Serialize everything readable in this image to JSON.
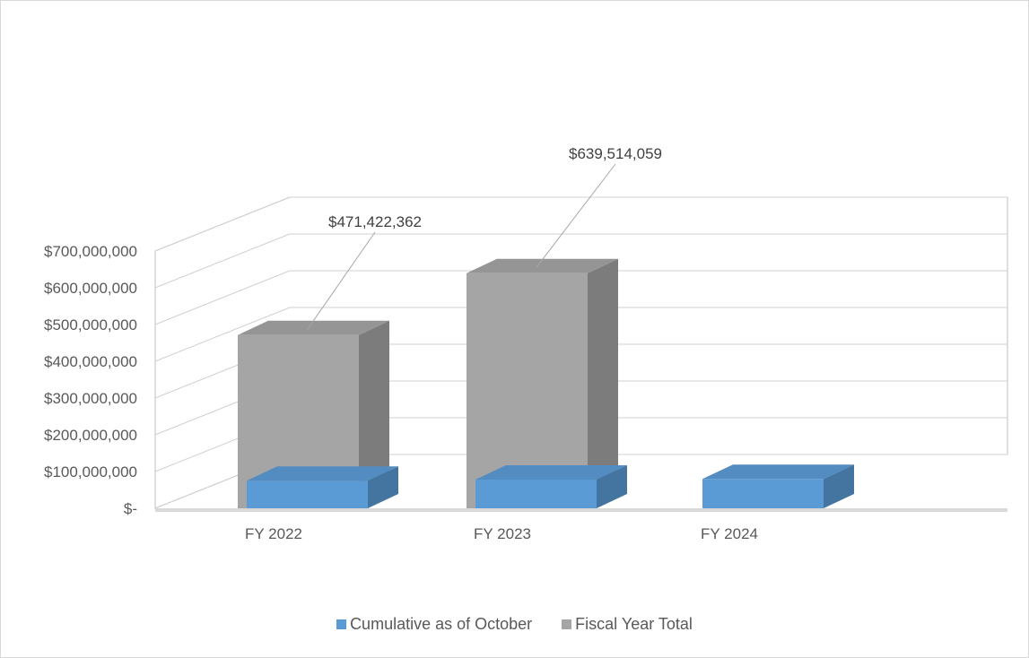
{
  "chart_data": {
    "type": "bar",
    "title": "",
    "xlabel": "",
    "ylabel": "",
    "categories": [
      "FY 2022",
      "FY 2023",
      "FY 2024"
    ],
    "ylim": [
      0,
      700000000
    ],
    "yticks": [
      0,
      100000000,
      200000000,
      300000000,
      400000000,
      500000000,
      600000000,
      700000000
    ],
    "ytick_labels": [
      "$-",
      "$100,000,000",
      "$200,000,000",
      "$300,000,000",
      "$400,000,000",
      "$500,000,000",
      "$600,000,000",
      "$700,000,000"
    ],
    "grid": true,
    "legend_position": "bottom",
    "series": [
      {
        "name": "Cumulative as of October",
        "values": [
          75000000,
          78000000,
          80000000
        ],
        "color": "#5b9bd5"
      },
      {
        "name": "Fiscal Year Total",
        "values": [
          471422362,
          639514059,
          0
        ],
        "color": "#a5a5a5"
      }
    ],
    "data_labels": [
      "$471,422,362",
      "$639,514,059"
    ]
  }
}
